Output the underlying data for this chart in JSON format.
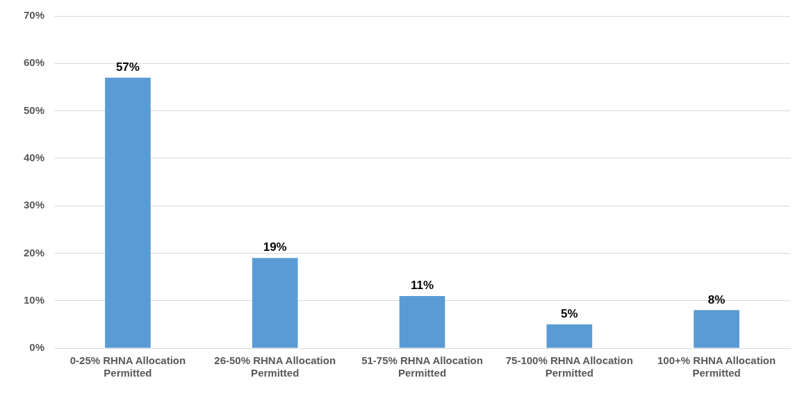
{
  "chart_data": {
    "type": "bar",
    "categories": [
      "0-25% RHNA Allocation Permitted",
      "26-50% RHNA Allocation Permitted",
      "51-75% RHNA Allocation Permitted",
      "75-100% RHNA Allocation Permitted",
      "100+% RHNA Allocation Permitted"
    ],
    "values": [
      57,
      19,
      11,
      5,
      8
    ],
    "color": "#5b9bd5",
    "ylim": [
      0,
      70
    ],
    "yticks": [
      {
        "value": 0,
        "label": "0%"
      },
      {
        "value": 10,
        "label": "10%"
      },
      {
        "value": 20,
        "label": "20%"
      },
      {
        "value": 30,
        "label": "30%"
      },
      {
        "value": 40,
        "label": "40%"
      },
      {
        "value": 50,
        "label": "50%"
      },
      {
        "value": 60,
        "label": "60%"
      },
      {
        "value": 70,
        "label": "70%"
      }
    ],
    "grid": "y",
    "data_labels": true,
    "value_labels": [
      "57%",
      "19%",
      "11%",
      "5%",
      "8%"
    ]
  }
}
